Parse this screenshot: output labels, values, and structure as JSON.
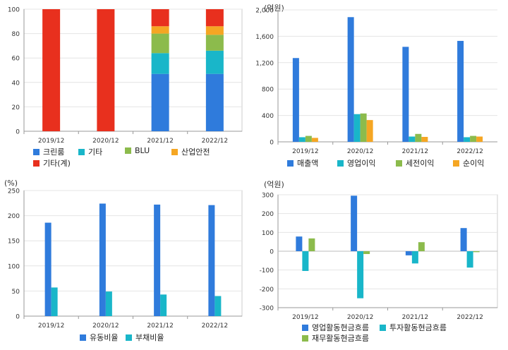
{
  "colors": {
    "blue": "#2f7bdc",
    "teal": "#19b6c9",
    "green": "#8cbb4c",
    "orange": "#f5a623",
    "red": "#e8301e",
    "grid": "#e4e4e4",
    "axis": "#999999",
    "frame": "#cccccc"
  },
  "chart_data": [
    {
      "id": "composition",
      "type": "bar",
      "stacked": true,
      "title": "",
      "unit": "",
      "categories": [
        "2019/12",
        "2020/12",
        "2021/12",
        "2022/12"
      ],
      "ylim": [
        0,
        100
      ],
      "yticks": [
        "0",
        "20",
        "40",
        "60",
        "80",
        "100"
      ],
      "series": [
        {
          "name": "크린룸",
          "color": "blue",
          "values": [
            0,
            0,
            47,
            47
          ]
        },
        {
          "name": "기타",
          "color": "teal",
          "values": [
            0,
            0,
            17,
            19
          ]
        },
        {
          "name": "BLU",
          "color": "green",
          "values": [
            0,
            0,
            16,
            13
          ]
        },
        {
          "name": "산업안전",
          "color": "orange",
          "values": [
            0,
            0,
            6,
            7
          ]
        },
        {
          "name": "기타(계)",
          "color": "red",
          "values": [
            100,
            100,
            14,
            14
          ]
        }
      ],
      "grid": true
    },
    {
      "id": "income",
      "type": "bar",
      "title": "",
      "unit": "(억원)",
      "categories": [
        "2019/12",
        "2020/12",
        "2021/12",
        "2022/12"
      ],
      "ylim": [
        0,
        2000
      ],
      "yticks": [
        "0",
        "400",
        "800",
        "1,200",
        "1,600",
        "2,000"
      ],
      "series": [
        {
          "name": "매출액",
          "color": "blue",
          "values": [
            1270,
            1890,
            1440,
            1530
          ]
        },
        {
          "name": "영업이익",
          "color": "teal",
          "values": [
            70,
            420,
            80,
            70
          ]
        },
        {
          "name": "세전이익",
          "color": "green",
          "values": [
            90,
            430,
            120,
            90
          ]
        },
        {
          "name": "순이익",
          "color": "orange",
          "values": [
            60,
            330,
            75,
            80
          ]
        }
      ],
      "grid": true
    },
    {
      "id": "ratios",
      "type": "bar",
      "title": "",
      "unit": "(%)",
      "categories": [
        "2019/12",
        "2020/12",
        "2021/12",
        "2022/12"
      ],
      "ylim": [
        0,
        250
      ],
      "yticks": [
        "0",
        "50",
        "100",
        "150",
        "200",
        "250"
      ],
      "series": [
        {
          "name": "유동비율",
          "color": "blue",
          "values": [
            186,
            224,
            222,
            221
          ]
        },
        {
          "name": "부채비율",
          "color": "teal",
          "values": [
            57,
            49,
            43,
            40
          ]
        }
      ],
      "grid": true
    },
    {
      "id": "cashflow",
      "type": "bar",
      "title": "",
      "unit": "(억원)",
      "categories": [
        "2019/12",
        "2020/12",
        "2021/12",
        "2022/12"
      ],
      "ylim": [
        -300,
        300
      ],
      "yticks": [
        "-300",
        "-200",
        "-100",
        "0",
        "100",
        "200",
        "300"
      ],
      "series": [
        {
          "name": "영업활동현금흐름",
          "color": "blue",
          "values": [
            78,
            295,
            -22,
            123
          ]
        },
        {
          "name": "투자활동현금흐름",
          "color": "teal",
          "values": [
            -105,
            -250,
            -65,
            -87
          ]
        },
        {
          "name": "재무활동현금흐름",
          "color": "green",
          "values": [
            68,
            -15,
            48,
            -5
          ]
        }
      ],
      "grid": true
    }
  ]
}
